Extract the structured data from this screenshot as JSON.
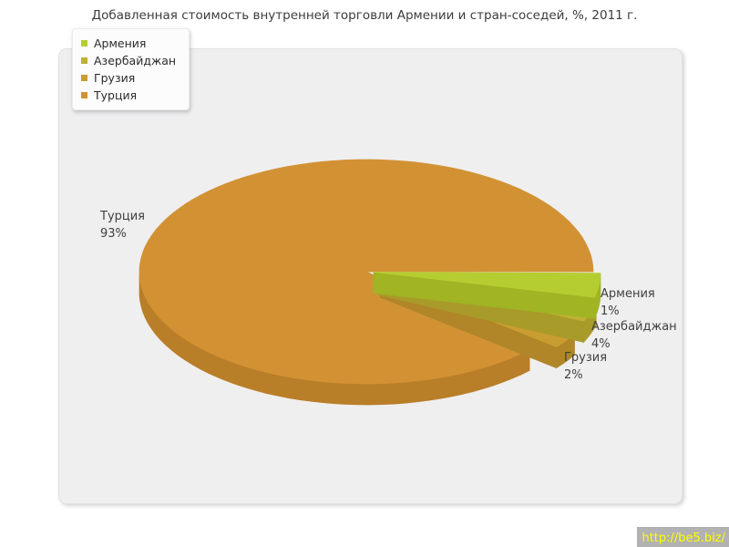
{
  "watermark": {
    "text": "http://be5.biz/",
    "color": "#ffff00",
    "bg": "#b2b2b2"
  },
  "chart_data": {
    "type": "pie",
    "is3d": true,
    "title": "Добавленная стоимость внутренней торговли Армении и стран-соседей, %, 2011 г.",
    "unit": "%",
    "legend_position": "top-left",
    "labels_format": "name + percent, outside",
    "background": "#efeff0",
    "slices": [
      {
        "id": "armenia",
        "label": "Армения",
        "value": 1,
        "value_text": "1%",
        "color": "#b6cd31",
        "side_color": "#a0b424"
      },
      {
        "id": "azerbaijan",
        "label": "Азербайджан",
        "value": 4,
        "value_text": "4%",
        "color": "#bfb133",
        "side_color": "#a89b29"
      },
      {
        "id": "georgia",
        "label": "Грузия",
        "value": 2,
        "value_text": "2%",
        "color": "#c99d31",
        "side_color": "#b08629"
      },
      {
        "id": "turkey",
        "label": "Турция",
        "value": 93,
        "value_text": "93%",
        "color": "#d29234",
        "side_color": "#b97e28"
      }
    ]
  }
}
